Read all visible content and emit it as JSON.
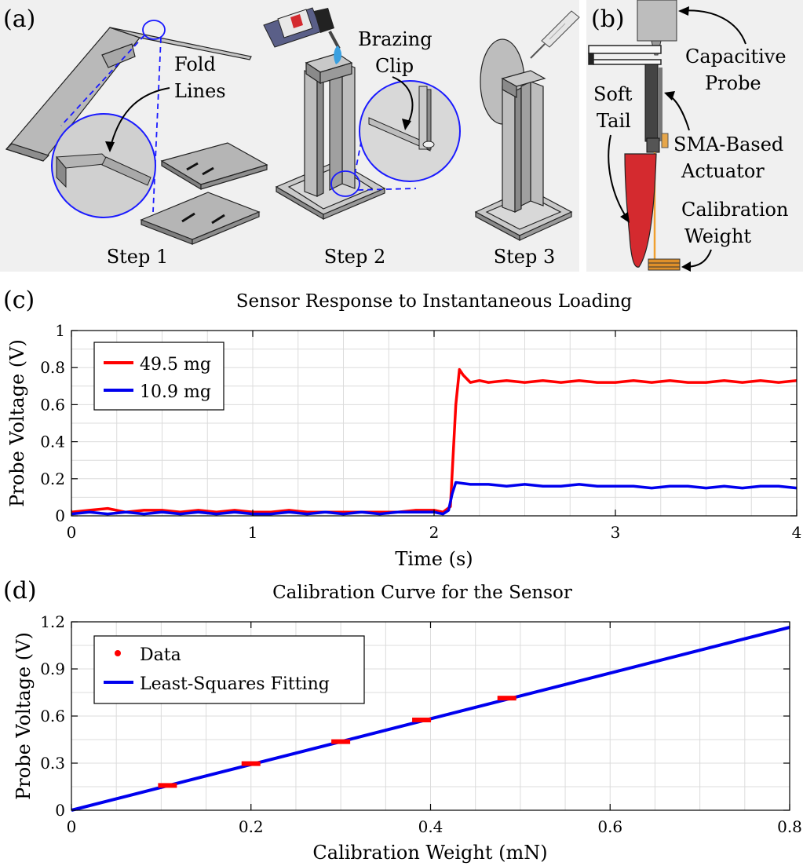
{
  "panels": {
    "a": {
      "label": "(a)",
      "fold_lines": "Fold Lines",
      "fold_lines_1": "Fold",
      "fold_lines_2": "Lines",
      "brazing_clip_1": "Brazing",
      "brazing_clip_2": "Clip",
      "steps": [
        "Step 1",
        "Step 2",
        "Step 3"
      ]
    },
    "b": {
      "label": "(b)",
      "capacitive_probe_1": "Capacitive",
      "capacitive_probe_2": "Probe",
      "soft_tail_1": "Soft",
      "soft_tail_2": "Tail",
      "sma_1": "SMA-Based",
      "sma_2": "Actuator",
      "calib_1": "Calibration",
      "calib_2": "Weight"
    },
    "c": {
      "label": "(c)"
    },
    "d": {
      "label": "(d)"
    }
  },
  "colors": {
    "red": "#ff0000",
    "blue": "#0000ee",
    "panel_bg": "#f0f0f0",
    "grid": "#dcdcdc",
    "soft_tail": "#d42a2f",
    "sma_wire": "#f0a030",
    "callout": "#1a1aff"
  },
  "chart_data": [
    {
      "type": "line",
      "title": "Sensor Response to Instantaneous Loading",
      "xlabel": "Time (s)",
      "ylabel": "Probe Voltage (V)",
      "xlim": [
        0,
        4
      ],
      "ylim": [
        0,
        1
      ],
      "xticks": [
        0,
        1,
        2,
        3,
        4
      ],
      "yticks": [
        0,
        0.2,
        0.4,
        0.6,
        0.8,
        1
      ],
      "grid": true,
      "legend_position": "top-left",
      "series": [
        {
          "name": "49.5 mg",
          "color": "#ff0000",
          "x": [
            0,
            0.1,
            0.2,
            0.3,
            0.4,
            0.5,
            0.6,
            0.7,
            0.8,
            0.9,
            1.0,
            1.1,
            1.2,
            1.3,
            1.4,
            1.5,
            1.6,
            1.7,
            1.8,
            1.9,
            2.0,
            2.05,
            2.09,
            2.12,
            2.14,
            2.16,
            2.2,
            2.25,
            2.3,
            2.4,
            2.5,
            2.6,
            2.7,
            2.8,
            2.9,
            3.0,
            3.1,
            3.2,
            3.3,
            3.4,
            3.5,
            3.6,
            3.7,
            3.8,
            3.9,
            4.0
          ],
          "values": [
            0.02,
            0.03,
            0.04,
            0.02,
            0.03,
            0.03,
            0.02,
            0.03,
            0.02,
            0.03,
            0.02,
            0.02,
            0.03,
            0.02,
            0.02,
            0.02,
            0.02,
            0.02,
            0.02,
            0.03,
            0.03,
            0.02,
            0.05,
            0.6,
            0.79,
            0.76,
            0.72,
            0.73,
            0.72,
            0.73,
            0.72,
            0.73,
            0.72,
            0.73,
            0.72,
            0.72,
            0.73,
            0.72,
            0.73,
            0.72,
            0.72,
            0.73,
            0.72,
            0.73,
            0.72,
            0.73
          ]
        },
        {
          "name": "10.9 mg",
          "color": "#0000ee",
          "x": [
            0,
            0.1,
            0.2,
            0.3,
            0.4,
            0.5,
            0.6,
            0.7,
            0.8,
            0.9,
            1.0,
            1.1,
            1.2,
            1.3,
            1.4,
            1.5,
            1.6,
            1.7,
            1.8,
            1.9,
            2.0,
            2.05,
            2.08,
            2.1,
            2.12,
            2.2,
            2.3,
            2.4,
            2.5,
            2.6,
            2.7,
            2.8,
            2.9,
            3.0,
            3.1,
            3.2,
            3.3,
            3.4,
            3.5,
            3.6,
            3.7,
            3.8,
            3.9,
            4.0
          ],
          "values": [
            0.01,
            0.02,
            0.01,
            0.02,
            0.01,
            0.02,
            0.01,
            0.02,
            0.01,
            0.02,
            0.01,
            0.01,
            0.02,
            0.01,
            0.02,
            0.01,
            0.02,
            0.01,
            0.02,
            0.02,
            0.02,
            0.01,
            0.03,
            0.12,
            0.18,
            0.17,
            0.17,
            0.16,
            0.17,
            0.16,
            0.16,
            0.17,
            0.16,
            0.16,
            0.16,
            0.15,
            0.16,
            0.16,
            0.15,
            0.16,
            0.15,
            0.16,
            0.16,
            0.15
          ]
        }
      ]
    },
    {
      "type": "scatter",
      "title": "Calibration Curve for the Sensor",
      "xlabel": "Calibration Weight (mN)",
      "ylabel": "Probe Voltage (V)",
      "xlim": [
        0,
        0.8
      ],
      "ylim": [
        0,
        1.2
      ],
      "xticks": [
        0,
        0.2,
        0.4,
        0.6,
        0.8
      ],
      "yticks": [
        0,
        0.3,
        0.6,
        0.9,
        1.2
      ],
      "grid": true,
      "legend_position": "top-left",
      "series": [
        {
          "name": "Data",
          "color": "#ff0000",
          "x": [
            0.107,
            0.2,
            0.3,
            0.39,
            0.485
          ],
          "values": [
            0.158,
            0.297,
            0.437,
            0.575,
            0.714
          ]
        },
        {
          "name": "Least-Squares Fitting",
          "color": "#0000ee",
          "x": [
            0,
            0.8
          ],
          "values": [
            0,
            1.165
          ]
        }
      ]
    }
  ]
}
